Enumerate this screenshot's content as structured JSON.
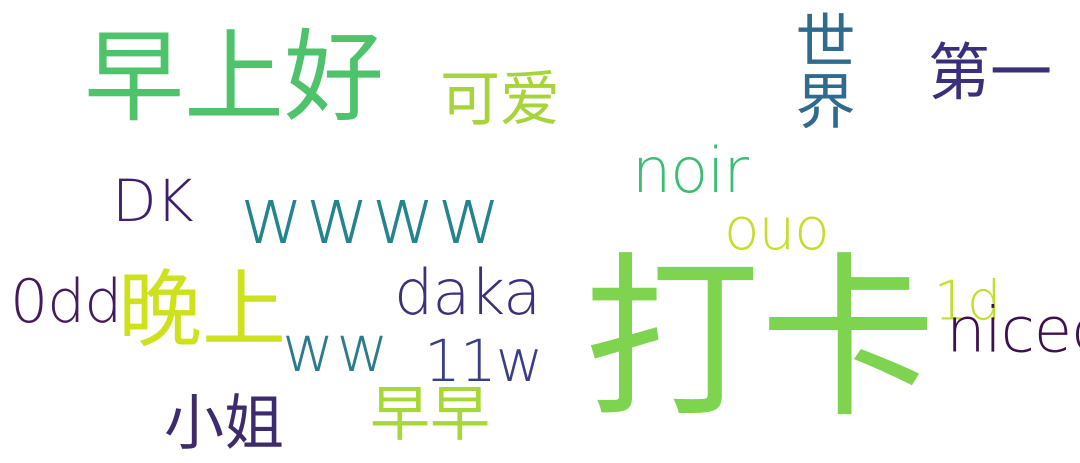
{
  "words": {
    "zaoshang_hao": {
      "text": "早上好",
      "color": "#4ec36b"
    },
    "keai": {
      "text": "可爱",
      "color": "#a6d43a"
    },
    "shijie": {
      "text": "世界",
      "color": "#2f6b8e"
    },
    "diyi": {
      "text": "第一",
      "color": "#3a2f7a"
    },
    "noir": {
      "text": "noir",
      "color": "#3bbd73"
    },
    "dk": {
      "text": "DK",
      "color": "#3d1f6b"
    },
    "wwww": {
      "text": "wwww",
      "color": "#23838e"
    },
    "ouo": {
      "text": "ouo",
      "color": "#c8dc2b"
    },
    "odd": {
      "text": "0dd",
      "color": "#431a5a"
    },
    "wanshang": {
      "text": "晚上",
      "color": "#cde11d"
    },
    "daka_en": {
      "text": "daka",
      "color": "#3f2f78"
    },
    "ww": {
      "text": "ww",
      "color": "#2b7b8e"
    },
    "elevenw": {
      "text": "11w",
      "color": "#3a3f85"
    },
    "oned": {
      "text": "1d",
      "color": "#bfe02c"
    },
    "nicedd": {
      "text": "nicedd",
      "color": "#3f1050"
    },
    "daka_cn": {
      "text": "打卡",
      "color": "#7ed34f"
    },
    "xiaojie": {
      "text": "小姐",
      "color": "#3e2b6e"
    },
    "zaozao": {
      "text": "早早",
      "color": "#a8d838"
    }
  }
}
